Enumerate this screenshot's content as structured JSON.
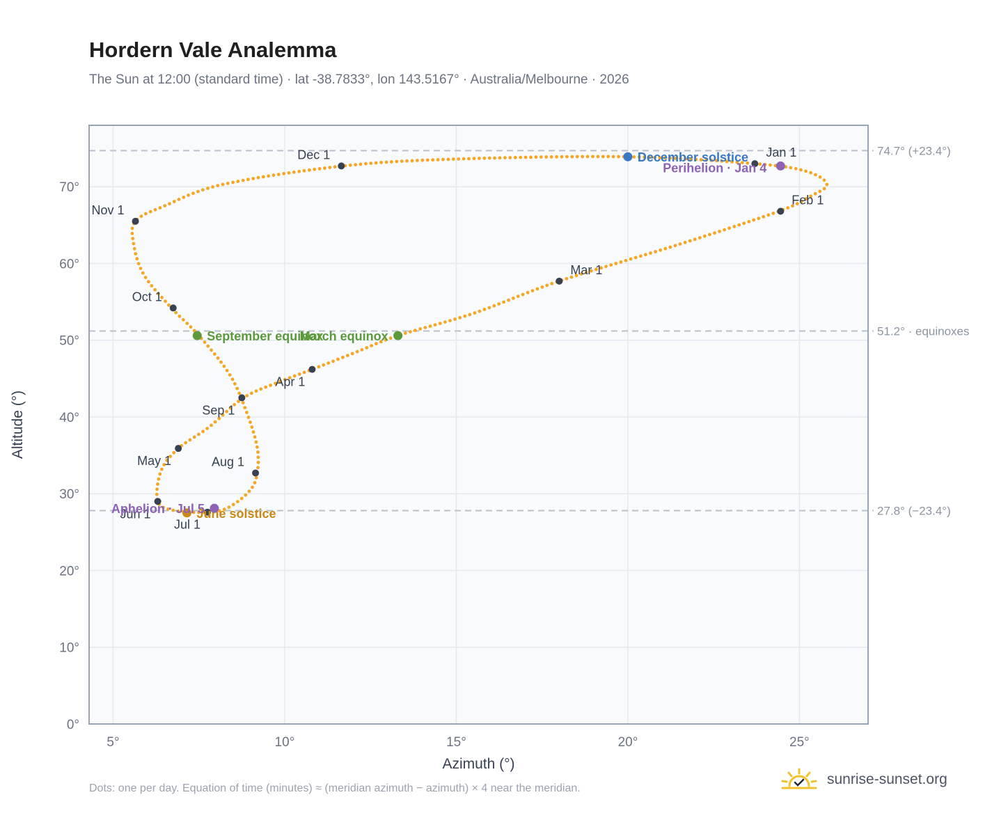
{
  "title": "Hordern Vale Analemma",
  "subtitle": "The Sun at 12:00 (standard time) · lat -38.7833°, lon 143.5167° · Australia/Melbourne · 2026",
  "footnote": "Dots: one per day. Equation of time (minutes) ≈ (meridian azimuth − azimuth) × 4 near the meridian.",
  "brand": {
    "text": "sunrise-sunset.org",
    "icon": "sunrise-logo-icon"
  },
  "colors": {
    "curve": "#f5a623",
    "month_marker": "#374151",
    "equinox": "#5b9a3c",
    "december_solstice": "#3b78c4",
    "june_solstice": "#c98a14",
    "aphelion_perihelion": "#8e62b5",
    "reference_line": "#b8c1cc",
    "plot_bg": "#f8fafc"
  },
  "chart_data": {
    "type": "scatter",
    "xlabel": "Azimuth (°)",
    "ylabel": "Altitude (°)",
    "xlim": [
      4.3,
      27.0
    ],
    "ylim": [
      0,
      78
    ],
    "xticks": [
      5,
      10,
      15,
      20,
      25
    ],
    "xtick_labels": [
      "5°",
      "10°",
      "15°",
      "20°",
      "25°"
    ],
    "yticks": [
      0,
      10,
      20,
      30,
      40,
      50,
      60,
      70
    ],
    "ytick_labels": [
      "0°",
      "10°",
      "20°",
      "30°",
      "40°",
      "50°",
      "60°",
      "70°"
    ],
    "grid": true,
    "daily_path_anchors": [
      [
        23.7,
        73.0
      ],
      [
        25.2,
        72.0
      ],
      [
        25.8,
        70.3
      ],
      [
        25.3,
        68.7
      ],
      [
        24.4,
        66.8
      ],
      [
        21.5,
        62.5
      ],
      [
        18.0,
        57.7
      ],
      [
        15.5,
        53.5
      ],
      [
        13.3,
        50.6
      ],
      [
        12.0,
        48.3
      ],
      [
        10.8,
        46.2
      ],
      [
        9.8,
        44.5
      ],
      [
        8.8,
        42.5
      ],
      [
        7.8,
        38.7
      ],
      [
        6.9,
        35.9
      ],
      [
        6.4,
        33.0
      ],
      [
        6.3,
        29.0
      ],
      [
        6.8,
        27.8
      ],
      [
        7.8,
        27.6
      ],
      [
        8.4,
        28.3
      ],
      [
        9.0,
        30.5
      ],
      [
        9.2,
        32.7
      ],
      [
        9.2,
        36.0
      ],
      [
        8.9,
        40.5
      ],
      [
        8.4,
        45.5
      ],
      [
        7.5,
        50.6
      ],
      [
        6.7,
        54.2
      ],
      [
        5.9,
        58.5
      ],
      [
        5.6,
        62.5
      ],
      [
        5.65,
        65.5
      ],
      [
        6.5,
        67.5
      ],
      [
        8.2,
        70.3
      ],
      [
        11.7,
        72.7
      ],
      [
        15.0,
        73.6
      ],
      [
        20.0,
        73.9
      ],
      [
        23.7,
        73.0
      ]
    ],
    "month_markers": [
      {
        "label": "Jan 1",
        "x": 23.7,
        "y": 73.0,
        "pos": "above-right"
      },
      {
        "label": "Feb 1",
        "x": 24.45,
        "y": 66.8,
        "pos": "above-right"
      },
      {
        "label": "Mar 1",
        "x": 18.0,
        "y": 57.7,
        "pos": "above-right"
      },
      {
        "label": "Apr 1",
        "x": 10.8,
        "y": 46.2,
        "pos": "below-left"
      },
      {
        "label": "May 1",
        "x": 6.9,
        "y": 35.9,
        "pos": "below-left"
      },
      {
        "label": "Jun 1",
        "x": 6.3,
        "y": 29.0,
        "pos": "below-left"
      },
      {
        "label": "Jul 1",
        "x": 7.75,
        "y": 27.6,
        "pos": "below-left"
      },
      {
        "label": "Aug 1",
        "x": 9.15,
        "y": 32.7,
        "pos": "above-left"
      },
      {
        "label": "Sep 1",
        "x": 8.75,
        "y": 42.5,
        "pos": "below-left"
      },
      {
        "label": "Oct 1",
        "x": 6.75,
        "y": 54.2,
        "pos": "above-left"
      },
      {
        "label": "Nov 1",
        "x": 5.65,
        "y": 65.5,
        "pos": "above-left"
      },
      {
        "label": "Dec 1",
        "x": 11.65,
        "y": 72.7,
        "pos": "above-left"
      }
    ],
    "events": [
      {
        "label": "December solstice",
        "x": 20.0,
        "y": 73.9,
        "color_key": "december_solstice",
        "pos": "right"
      },
      {
        "label": "Perihelion · Jan 4",
        "x": 24.45,
        "y": 72.7,
        "color_key": "aphelion_perihelion",
        "pos": "left-below"
      },
      {
        "label": "March equinox",
        "x": 13.3,
        "y": 50.6,
        "color_key": "equinox",
        "pos": "left"
      },
      {
        "label": "September equinox",
        "x": 7.45,
        "y": 50.6,
        "color_key": "equinox",
        "pos": "right"
      },
      {
        "label": "June solstice",
        "x": 7.15,
        "y": 27.5,
        "color_key": "june_solstice",
        "pos": "right"
      },
      {
        "label": "Aphelion · Jul 5",
        "x": 7.95,
        "y": 28.1,
        "color_key": "aphelion_perihelion",
        "pos": "left"
      }
    ],
    "reference_lines": [
      {
        "y": 74.7,
        "label": "74.7° (+23.4°)"
      },
      {
        "y": 51.2,
        "label": "51.2° · equinoxes"
      },
      {
        "y": 27.8,
        "label": "27.8° (−23.4°)"
      }
    ]
  }
}
